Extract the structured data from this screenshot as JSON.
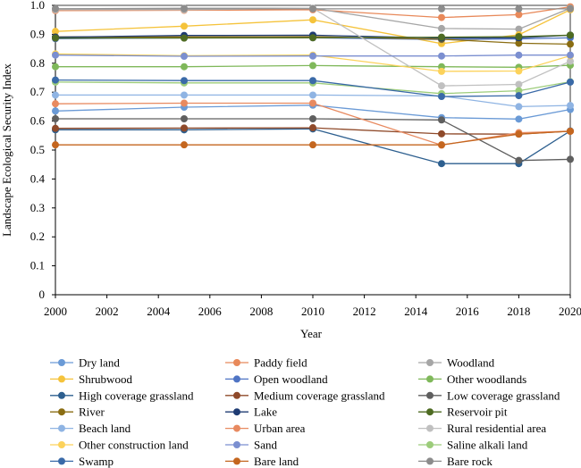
{
  "chart_data": {
    "type": "line",
    "title": "",
    "xlabel": "Year",
    "ylabel": "Landscape Ecological Security Index",
    "x": [
      2000,
      2005,
      2010,
      2015,
      2018,
      2020
    ],
    "xlim": [
      2000,
      2020
    ],
    "ylim": [
      0,
      1.0
    ],
    "xticks": [
      "2000",
      "2002",
      "2004",
      "2006",
      "2008",
      "2010",
      "2012",
      "2014",
      "2016",
      "2018",
      "2020"
    ],
    "yticks": [
      "0",
      "0.1",
      "0.2",
      "0.3",
      "0.4",
      "0.5",
      "0.6",
      "0.7",
      "0.8",
      "0.9",
      "1.0"
    ],
    "grid": false,
    "legend": "bottom",
    "series": [
      {
        "name": "Dry land",
        "color": "#6a9ad6",
        "values": [
          0.635,
          0.648,
          0.655,
          0.612,
          0.607,
          0.64
        ]
      },
      {
        "name": "Paddy field",
        "color": "#e8895a",
        "values": [
          0.982,
          0.983,
          0.985,
          0.958,
          0.968,
          0.995
        ]
      },
      {
        "name": "Woodland",
        "color": "#a6a6a6",
        "values": [
          0.988,
          0.99,
          0.99,
          0.92,
          0.918,
          0.99
        ]
      },
      {
        "name": "Shrubwood",
        "color": "#f5c33b",
        "values": [
          0.91,
          0.928,
          0.95,
          0.868,
          0.898,
          0.985
        ]
      },
      {
        "name": "Open woodland",
        "color": "#4f74c4",
        "values": [
          0.885,
          0.888,
          0.888,
          0.882,
          0.884,
          0.888
        ]
      },
      {
        "name": "Other woodlands",
        "color": "#7fb85a",
        "values": [
          0.788,
          0.788,
          0.792,
          0.788,
          0.786,
          0.793
        ]
      },
      {
        "name": "High coverage grassland",
        "color": "#2d5f8f",
        "values": [
          0.57,
          0.57,
          0.573,
          0.453,
          0.453,
          0.566
        ]
      },
      {
        "name": "Medium coverage grassland",
        "color": "#8f4a2a",
        "values": [
          0.575,
          0.576,
          0.577,
          0.556,
          0.555,
          0.565
        ]
      },
      {
        "name": "Low coverage grassland",
        "color": "#5f5f5f",
        "values": [
          0.608,
          0.608,
          0.608,
          0.604,
          0.464,
          0.468
        ]
      },
      {
        "name": "River",
        "color": "#8a6d12",
        "values": [
          0.891,
          0.891,
          0.892,
          0.883,
          0.869,
          0.866
        ]
      },
      {
        "name": "Lake",
        "color": "#1e3b73",
        "values": [
          0.89,
          0.896,
          0.897,
          0.887,
          0.888,
          0.897
        ]
      },
      {
        "name": "Reservoir pit",
        "color": "#4e6b22",
        "values": [
          0.887,
          0.887,
          0.888,
          0.89,
          0.892,
          0.897
        ]
      },
      {
        "name": "Beach land",
        "color": "#8fb4e3",
        "values": [
          0.69,
          0.69,
          0.69,
          0.687,
          0.65,
          0.654
        ]
      },
      {
        "name": "Urban area",
        "color": "#e88a60",
        "values": [
          0.66,
          0.662,
          0.662,
          0.517,
          0.56,
          0.565
        ]
      },
      {
        "name": "Rural residential area",
        "color": "#c0c0c0",
        "values": [
          0.985,
          0.985,
          0.99,
          0.722,
          0.727,
          0.807
        ]
      },
      {
        "name": "Other construction land",
        "color": "#fcd25a",
        "values": [
          0.832,
          0.826,
          0.828,
          0.772,
          0.773,
          0.826
        ]
      },
      {
        "name": "Sand",
        "color": "#7b8fd0",
        "values": [
          0.828,
          0.824,
          0.825,
          0.825,
          0.828,
          0.828
        ]
      },
      {
        "name": "Saline alkali land",
        "color": "#9ccc7a",
        "values": [
          0.735,
          0.732,
          0.732,
          0.695,
          0.705,
          0.736
        ]
      },
      {
        "name": "Swamp",
        "color": "#3a6aa8",
        "values": [
          0.742,
          0.74,
          0.74,
          0.685,
          0.688,
          0.735
        ]
      },
      {
        "name": "Bare land",
        "color": "#c4661f",
        "values": [
          0.518,
          0.518,
          0.518,
          0.518,
          0.555,
          0.565
        ]
      },
      {
        "name": "Bare rock",
        "color": "#8c8c8c",
        "values": [
          0.988,
          0.988,
          0.988,
          0.988,
          0.988,
          0.988
        ]
      }
    ]
  }
}
